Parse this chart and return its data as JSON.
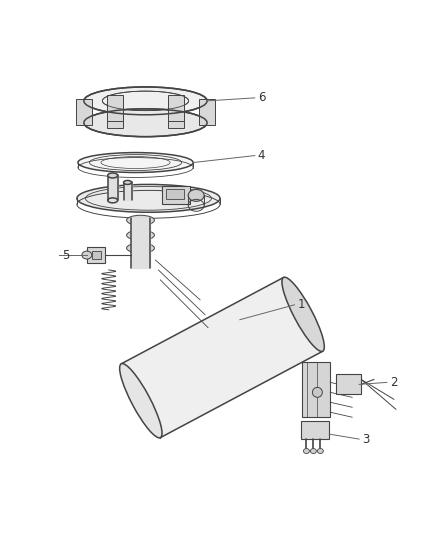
{
  "background_color": "#ffffff",
  "line_color": "#444444",
  "label_color": "#333333",
  "figure_width": 4.38,
  "figure_height": 5.33,
  "dpi": 100,
  "label_fontsize": 8.5,
  "leader_color": "#666666"
}
